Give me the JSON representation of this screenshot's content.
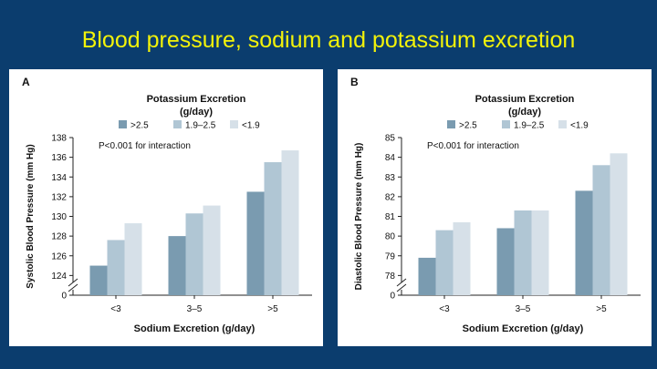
{
  "slide": {
    "title": "Blood pressure, sodium and potassium excretion"
  },
  "colors": {
    "series": [
      "#7a9bb0",
      "#b0c6d4",
      "#d6e0e8"
    ],
    "background": "#0b3d6e",
    "title": "#f2f20a"
  },
  "chart_data": [
    {
      "type": "bar",
      "panel_label": "A",
      "legend_title_line1": "Potassium Excretion",
      "legend_title_line2": "(g/day)",
      "legend_position": "top",
      "annotation": "P<0.001 for interaction",
      "xlabel": "Sodium Excretion (g/day)",
      "ylabel": "Systolic Blood Pressure (mm Hg)",
      "categories": [
        "<3",
        "3–5",
        ">5"
      ],
      "ylim": [
        122,
        138
      ],
      "axis_break": true,
      "yticks": [
        0,
        124,
        126,
        128,
        130,
        132,
        134,
        136,
        138
      ],
      "series": [
        {
          "name": ">2.5",
          "values": [
            125.0,
            128.0,
            132.5
          ]
        },
        {
          "name": "1.9–2.5",
          "values": [
            127.6,
            130.3,
            135.5
          ]
        },
        {
          "name": "<1.9",
          "values": [
            129.3,
            131.1,
            136.7
          ]
        }
      ]
    },
    {
      "type": "bar",
      "panel_label": "B",
      "legend_title_line1": "Potassium Excretion",
      "legend_title_line2": "(g/day)",
      "legend_position": "top",
      "annotation": "P<0.001 for interaction",
      "xlabel": "Sodium Excretion (g/day)",
      "ylabel": "Diastolic Blood Pressure (mm Hg)",
      "categories": [
        "<3",
        "3–5",
        ">5"
      ],
      "ylim": [
        77,
        85
      ],
      "axis_break": true,
      "yticks": [
        0,
        78,
        79,
        80,
        81,
        82,
        83,
        84,
        85
      ],
      "series": [
        {
          "name": ">2.5",
          "values": [
            78.9,
            80.4,
            82.3
          ]
        },
        {
          "name": "1.9–2.5",
          "values": [
            80.3,
            81.3,
            83.6
          ]
        },
        {
          "name": "<1.9",
          "values": [
            80.7,
            81.3,
            84.2
          ]
        }
      ]
    }
  ]
}
